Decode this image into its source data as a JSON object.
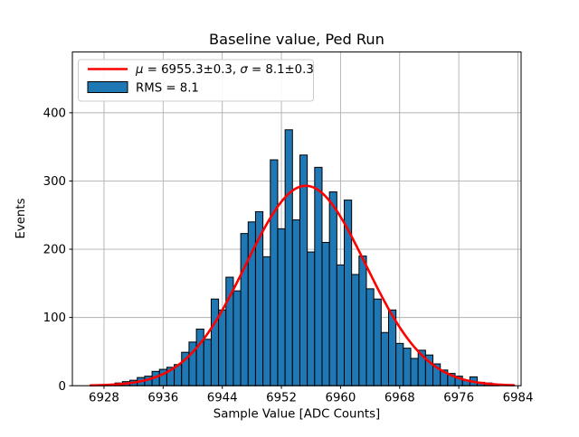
{
  "figure": {
    "title": "Baseline value, Ped Run",
    "xlabel": "Sample Value [ADC Counts]",
    "ylabel": "Events"
  },
  "legend": {
    "position": "upper left",
    "items": [
      {
        "type": "line",
        "color": "#ff0000",
        "label": "μ = 6955.3±0.3, σ = 8.1±0.3"
      },
      {
        "type": "patch",
        "color": "#1f77b4",
        "label": "RMS = 8.1"
      }
    ]
  },
  "chart_data": {
    "type": "bar",
    "subtype": "histogram",
    "title": "Baseline value, Ped Run",
    "xlabel": "Sample Value [ADC Counts]",
    "ylabel": "Events",
    "bin_width": 1,
    "bin_centers": [
      6927,
      6928,
      6929,
      6930,
      6931,
      6932,
      6933,
      6934,
      6935,
      6936,
      6937,
      6938,
      6939,
      6940,
      6941,
      6942,
      6943,
      6944,
      6945,
      6946,
      6947,
      6948,
      6949,
      6950,
      6951,
      6952,
      6953,
      6954,
      6955,
      6956,
      6957,
      6958,
      6959,
      6960,
      6961,
      6962,
      6963,
      6964,
      6965,
      6966,
      6967,
      6968,
      6969,
      6970,
      6971,
      6972,
      6973,
      6974,
      6975,
      6976,
      6977,
      6978,
      6979,
      6980,
      6981
    ],
    "counts": [
      1,
      1,
      2,
      4,
      6,
      8,
      12,
      14,
      21,
      24,
      27,
      31,
      49,
      64,
      83,
      68,
      127,
      111,
      159,
      139,
      223,
      240,
      255,
      189,
      331,
      230,
      375,
      243,
      338,
      196,
      320,
      210,
      284,
      177,
      272,
      163,
      190,
      142,
      127,
      78,
      111,
      62,
      55,
      40,
      52,
      45,
      32,
      23,
      18,
      14,
      8,
      13,
      5,
      4,
      2
    ],
    "fit": {
      "shape": "gaussian",
      "mu": 6955.3,
      "mu_err": 0.3,
      "sigma": 8.1,
      "sigma_err": 0.3,
      "peak": 293,
      "draw_range": [
        6926.2,
        6983.5
      ]
    },
    "xticks": [
      6928,
      6936,
      6944,
      6952,
      6960,
      6968,
      6976,
      6984
    ],
    "yticks": [
      0,
      100,
      200,
      300,
      400
    ],
    "xlim": [
      6923.72,
      6984.43
    ],
    "ylim": [
      0,
      489
    ],
    "grid": true,
    "legend_position": "upper left",
    "colors": {
      "bar_fill": "#1f77b4",
      "bar_edge": "#000000",
      "fit_line": "#ff0000",
      "grid": "#b0b0b0",
      "spine": "#000000",
      "legend_border": "#cccccc",
      "background": "#ffffff"
    }
  }
}
